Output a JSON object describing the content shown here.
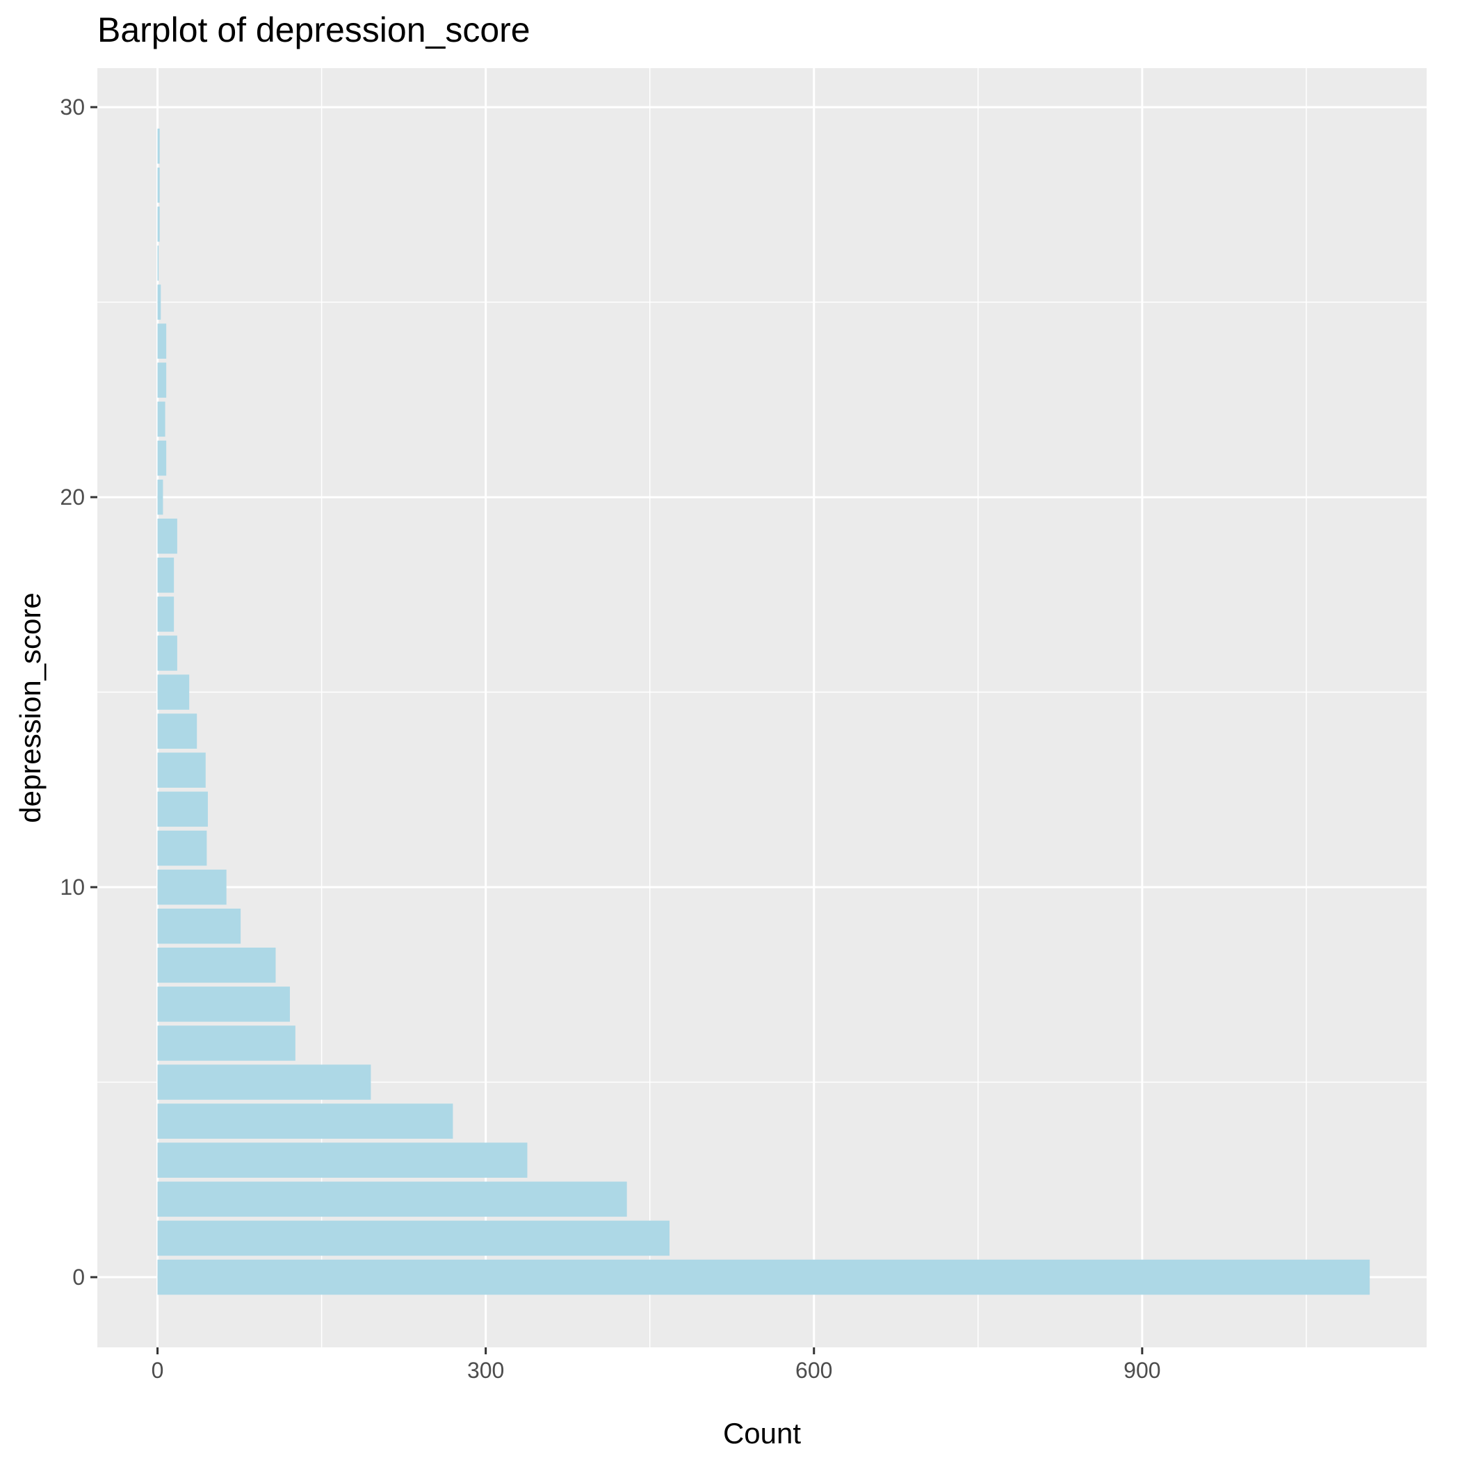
{
  "chart_data": {
    "type": "bar",
    "orientation": "horizontal",
    "title": "Barplot of depression_score",
    "xlabel": "Count",
    "ylabel": "depression_score",
    "categories": [
      0,
      1,
      2,
      3,
      4,
      5,
      6,
      7,
      8,
      9,
      10,
      11,
      12,
      13,
      14,
      15,
      16,
      17,
      18,
      19,
      20,
      21,
      22,
      23,
      24,
      25,
      26,
      27,
      28,
      29
    ],
    "values": [
      1108,
      468,
      429,
      338,
      270,
      195,
      126,
      121,
      108,
      76,
      63,
      45,
      46,
      44,
      36,
      29,
      18,
      15,
      15,
      18,
      5,
      8,
      7,
      8,
      8,
      3,
      1,
      2,
      2,
      2
    ],
    "x_ticks": [
      0,
      300,
      600,
      900
    ],
    "y_ticks": [
      0,
      10,
      20,
      30
    ],
    "xlim": [
      -55,
      1160
    ],
    "ylim": [
      -1.8,
      31
    ],
    "bar_color": "#add8e6",
    "panel_background": "#ebebeb",
    "grid": true
  }
}
